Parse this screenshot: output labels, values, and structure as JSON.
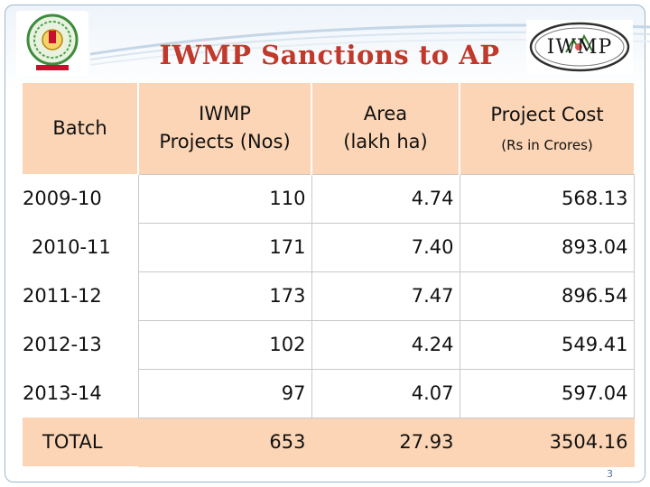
{
  "slide": {
    "title": "IWMP Sanctions to AP",
    "page_number": "3",
    "logo_right_text": "IWMP"
  },
  "table": {
    "headers": {
      "batch": "Batch",
      "projects_line1": "IWMP",
      "projects_line2": "Projects (Nos)",
      "area_line1": "Area",
      "area_line2": "(lakh ha)",
      "cost_line1": "Project Cost",
      "cost_line2": "(Rs in Crores)"
    },
    "rows": [
      {
        "batch": "2009-10",
        "projects": "110",
        "area": "4.74",
        "cost": "568.13"
      },
      {
        "batch": "2010-11",
        "projects": "171",
        "area": "7.40",
        "cost": "893.04"
      },
      {
        "batch": "2011-12",
        "projects": "173",
        "area": "7.47",
        "cost": "896.54"
      },
      {
        "batch": "2012-13",
        "projects": "102",
        "area": "4.24",
        "cost": "549.41"
      },
      {
        "batch": "2013-14",
        "projects": "97",
        "area": "4.07",
        "cost": "597.04"
      }
    ],
    "total": {
      "batch": "TOTAL",
      "projects": "653",
      "area": "27.93",
      "cost": "3504.16"
    }
  },
  "colors": {
    "title": "#c0392b",
    "header_fill": "#fbd5b5",
    "frame_border": "#9fb7cc"
  }
}
